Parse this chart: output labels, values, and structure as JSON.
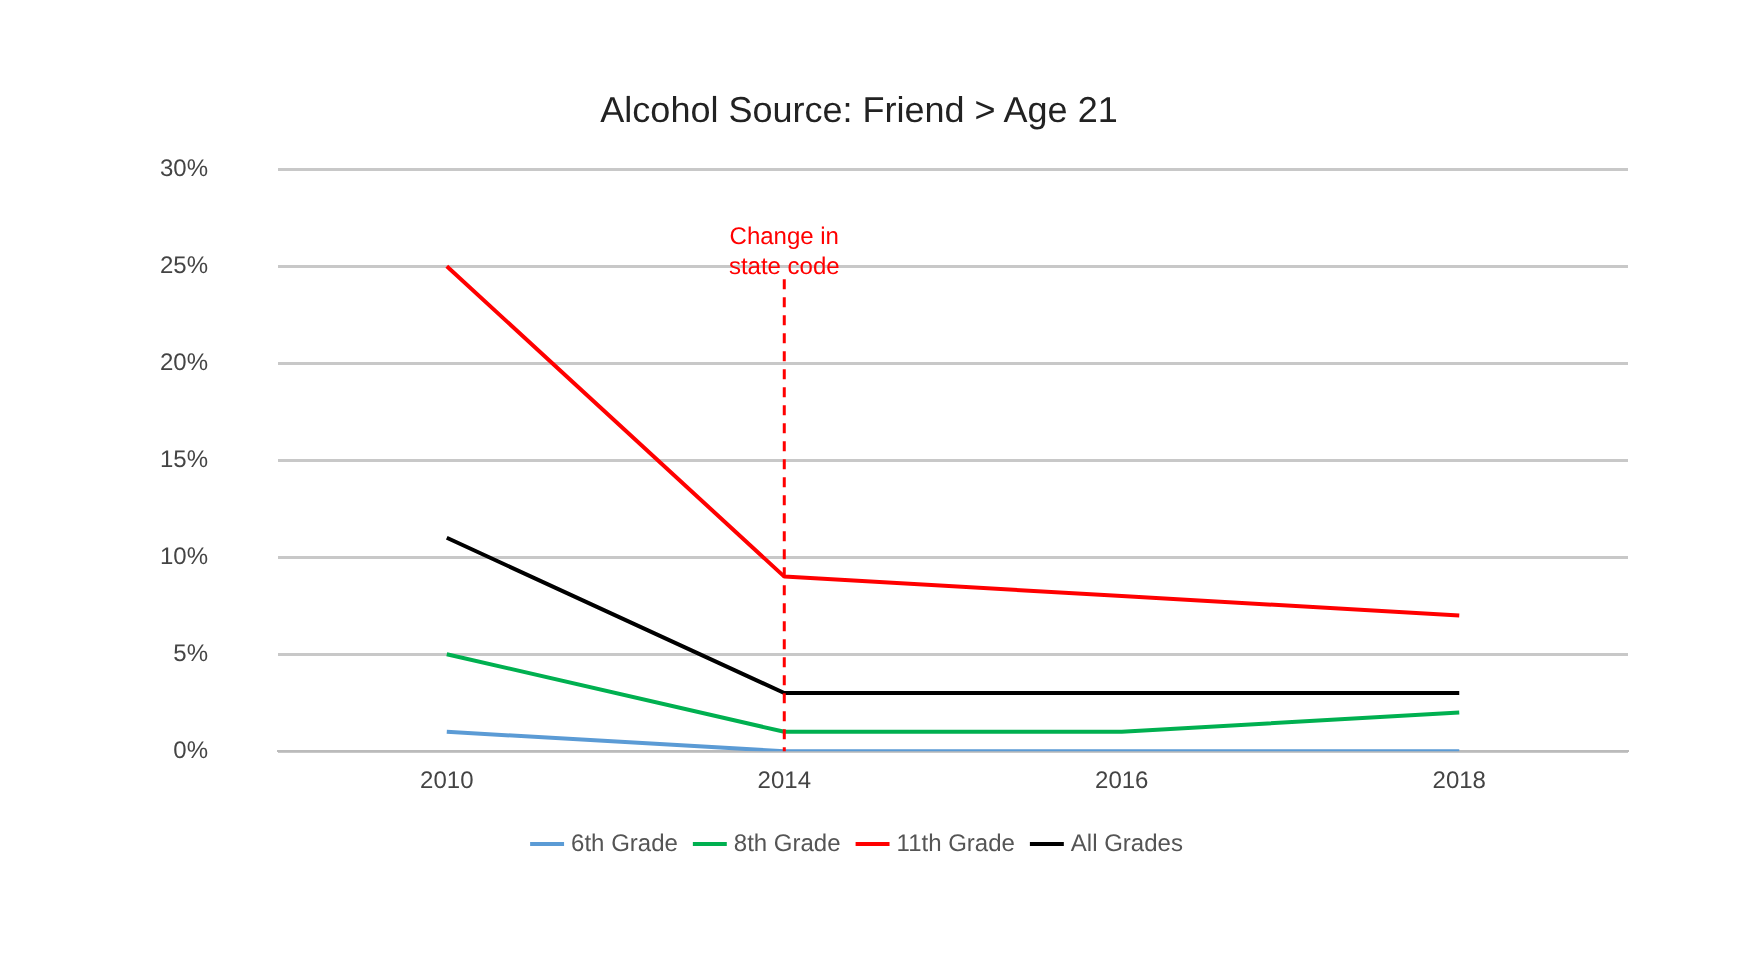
{
  "chart_data": {
    "type": "line",
    "title": "Alcohol Source: Friend > Age 21",
    "categories": [
      "2010",
      "2014",
      "2016",
      "2018"
    ],
    "series": [
      {
        "name": "6th Grade",
        "color": "#5b9bd5",
        "values": [
          1,
          0,
          0,
          0
        ]
      },
      {
        "name": "8th Grade",
        "color": "#00b050",
        "values": [
          5,
          1,
          1,
          2
        ]
      },
      {
        "name": "11th Grade",
        "color": "#ff0000",
        "values": [
          25,
          9,
          8,
          7
        ]
      },
      {
        "name": "All Grades",
        "color": "#000000",
        "values": [
          11,
          3,
          3,
          3
        ]
      }
    ],
    "ylim": [
      0,
      30
    ],
    "yticks": [
      {
        "value": 0,
        "label": "0%"
      },
      {
        "value": 5,
        "label": "5%"
      },
      {
        "value": 10,
        "label": "10%"
      },
      {
        "value": 15,
        "label": "15%"
      },
      {
        "value": 20,
        "label": "20%"
      },
      {
        "value": 25,
        "label": "25%"
      },
      {
        "value": 30,
        "label": "30%"
      }
    ],
    "ref_lines": [
      {
        "axis": "x",
        "value": "2014",
        "label": "Change in state code",
        "color": "#ff0000",
        "line_style": "dashed"
      }
    ],
    "grid": "y",
    "legend": "bottom",
    "marker": "none",
    "line_style": "solid"
  }
}
